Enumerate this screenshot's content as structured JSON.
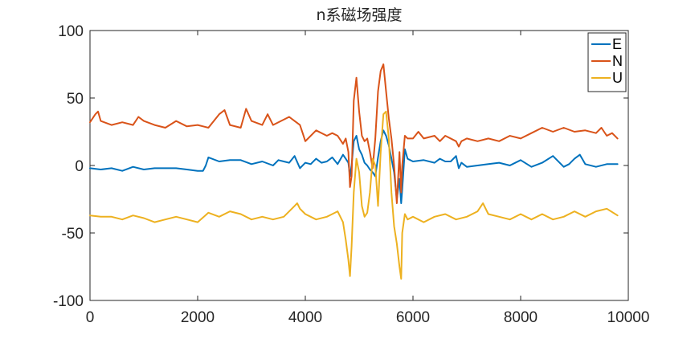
{
  "chart_data": {
    "type": "line",
    "title": "n系磁场强度",
    "xlabel": "",
    "ylabel": "",
    "xlim": [
      0,
      10000
    ],
    "ylim": [
      -100,
      100
    ],
    "xticks": [
      0,
      2000,
      4000,
      6000,
      8000,
      10000
    ],
    "xtick_labels": [
      "0",
      "2000",
      "4000",
      "6000",
      "8000",
      "10000"
    ],
    "yticks": [
      -100,
      -50,
      0,
      50,
      100
    ],
    "ytick_labels": [
      "-100",
      "-50",
      "0",
      "50",
      "100"
    ],
    "grid": false,
    "legend_position": "top-right",
    "series": [
      {
        "name": "E",
        "color": "#0072BD",
        "x": [
          0,
          200,
          400,
          600,
          800,
          1000,
          1200,
          1400,
          1600,
          1800,
          2000,
          2100,
          2150,
          2200,
          2400,
          2600,
          2800,
          3000,
          3200,
          3400,
          3500,
          3600,
          3700,
          3800,
          3900,
          4000,
          4100,
          4200,
          4300,
          4400,
          4500,
          4600,
          4700,
          4750,
          4800,
          4830,
          4860,
          4900,
          4950,
          5000,
          5050,
          5100,
          5150,
          5200,
          5250,
          5300,
          5350,
          5400,
          5450,
          5500,
          5550,
          5600,
          5650,
          5700,
          5750,
          5780,
          5800,
          5850,
          5900,
          6000,
          6200,
          6400,
          6500,
          6600,
          6700,
          6800,
          6850,
          6900,
          7000,
          7200,
          7400,
          7600,
          7800,
          8000,
          8200,
          8400,
          8600,
          8800,
          8900,
          9000,
          9100,
          9200,
          9400,
          9600,
          9800
        ],
        "y": [
          -2,
          -3,
          -2,
          -4,
          -1,
          -3,
          -2,
          -2,
          -2,
          -3,
          -4,
          -4,
          0,
          6,
          3,
          4,
          4,
          1,
          3,
          0,
          4,
          3,
          2,
          7,
          -2,
          2,
          1,
          5,
          2,
          3,
          6,
          1,
          8,
          5,
          2,
          -8,
          0,
          18,
          22,
          12,
          8,
          2,
          0,
          -3,
          -5,
          -8,
          6,
          18,
          26,
          22,
          15,
          5,
          -5,
          -25,
          -10,
          -28,
          -18,
          12,
          5,
          3,
          4,
          2,
          5,
          3,
          3,
          7,
          -2,
          2,
          -1,
          0,
          1,
          2,
          0,
          4,
          -1,
          2,
          7,
          -1,
          1,
          5,
          8,
          1,
          -1,
          1,
          1
        ]
      },
      {
        "name": "N",
        "color": "#D95319",
        "x": [
          0,
          100,
          150,
          200,
          400,
          600,
          800,
          900,
          1000,
          1200,
          1400,
          1600,
          1800,
          2000,
          2200,
          2400,
          2500,
          2600,
          2800,
          2900,
          3000,
          3200,
          3300,
          3400,
          3600,
          3700,
          3800,
          3900,
          3950,
          4000,
          4200,
          4400,
          4500,
          4600,
          4700,
          4750,
          4800,
          4830,
          4860,
          4900,
          4950,
          5000,
          5050,
          5100,
          5150,
          5200,
          5250,
          5300,
          5350,
          5400,
          5450,
          5500,
          5550,
          5600,
          5650,
          5700,
          5750,
          5780,
          5800,
          5850,
          5900,
          6000,
          6100,
          6200,
          6400,
          6500,
          6600,
          6800,
          6850,
          6900,
          7000,
          7200,
          7400,
          7600,
          7800,
          8000,
          8200,
          8400,
          8600,
          8800,
          9000,
          9200,
          9400,
          9500,
          9600,
          9700,
          9800
        ],
        "y": [
          32,
          38,
          40,
          33,
          30,
          32,
          30,
          36,
          33,
          30,
          28,
          33,
          29,
          30,
          28,
          38,
          41,
          30,
          28,
          42,
          33,
          30,
          38,
          30,
          34,
          36,
          33,
          30,
          24,
          18,
          26,
          22,
          24,
          22,
          16,
          20,
          10,
          -16,
          -8,
          48,
          65,
          40,
          22,
          18,
          20,
          10,
          -2,
          20,
          55,
          70,
          75,
          55,
          35,
          20,
          0,
          -28,
          10,
          -20,
          0,
          22,
          20,
          20,
          25,
          20,
          22,
          18,
          22,
          18,
          14,
          18,
          20,
          18,
          20,
          18,
          22,
          20,
          24,
          28,
          25,
          28,
          25,
          26,
          24,
          28,
          22,
          24,
          20
        ]
      },
      {
        "name": "U",
        "color": "#EDB120",
        "x": [
          0,
          200,
          400,
          600,
          800,
          1000,
          1200,
          1400,
          1600,
          1800,
          2000,
          2200,
          2400,
          2600,
          2800,
          3000,
          3200,
          3400,
          3600,
          3800,
          3850,
          3900,
          4000,
          4200,
          4400,
          4500,
          4600,
          4700,
          4750,
          4800,
          4830,
          4860,
          4900,
          4950,
          5000,
          5050,
          5100,
          5150,
          5200,
          5250,
          5300,
          5350,
          5400,
          5450,
          5500,
          5550,
          5600,
          5650,
          5700,
          5750,
          5780,
          5800,
          5850,
          5900,
          6000,
          6200,
          6400,
          6600,
          6800,
          7000,
          7200,
          7300,
          7400,
          7600,
          7800,
          8000,
          8200,
          8400,
          8600,
          8800,
          9000,
          9200,
          9400,
          9600,
          9800
        ],
        "y": [
          -37,
          -38,
          -38,
          -40,
          -37,
          -39,
          -42,
          -40,
          -38,
          -40,
          -42,
          -35,
          -38,
          -34,
          -36,
          -40,
          -38,
          -40,
          -38,
          -30,
          -28,
          -32,
          -36,
          -40,
          -38,
          -36,
          -34,
          -42,
          -55,
          -70,
          -82,
          -60,
          -20,
          5,
          -5,
          -30,
          -38,
          -35,
          -20,
          5,
          0,
          -30,
          10,
          38,
          40,
          20,
          -20,
          -45,
          -58,
          -75,
          -84,
          -50,
          -36,
          -40,
          -38,
          -42,
          -38,
          -36,
          -40,
          -38,
          -34,
          -28,
          -36,
          -38,
          -40,
          -36,
          -40,
          -36,
          -40,
          -38,
          -34,
          -38,
          -34,
          -32,
          -37
        ]
      }
    ]
  }
}
